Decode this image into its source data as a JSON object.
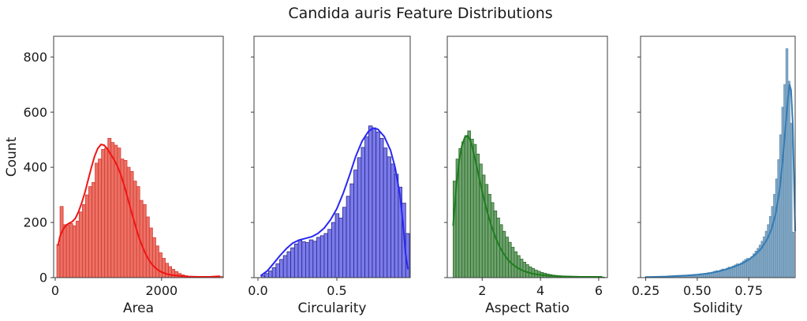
{
  "title": "Candida auris Feature Distributions",
  "ylabel": "Count",
  "y_ticks": {
    "values": [
      0,
      200,
      400,
      600,
      800
    ],
    "labels": [
      "0",
      "200",
      "400",
      "600",
      "800"
    ]
  },
  "chart_data": [
    {
      "id": "area",
      "type": "histogram+kde",
      "xlabel": "Area",
      "colors": {
        "fill": "#ec7165",
        "edge": "#d23b33",
        "line": "#f01515"
      },
      "xlim": [
        -30,
        3160
      ],
      "ylim": [
        0,
        875
      ],
      "x_ticks": {
        "values": [
          0,
          2000
        ],
        "labels": [
          "0",
          "2000"
        ]
      },
      "bins": {
        "start": 30,
        "width": 60
      },
      "counts": [
        120,
        258,
        192,
        190,
        196,
        188,
        205,
        238,
        265,
        300,
        330,
        345,
        415,
        430,
        465,
        470,
        505,
        490,
        480,
        470,
        430,
        425,
        400,
        385,
        350,
        330,
        280,
        265,
        220,
        180,
        145,
        115,
        90,
        70,
        52,
        40,
        30,
        22,
        15,
        10,
        7,
        5,
        4,
        3,
        2,
        2,
        2,
        2,
        2,
        3,
        2,
        4
      ],
      "kde": {
        "x": [
          55,
          90,
          140,
          200,
          260,
          320,
          380,
          440,
          500,
          560,
          620,
          680,
          740,
          800,
          860,
          920,
          980,
          1040,
          1100,
          1160,
          1220,
          1280,
          1340,
          1400,
          1460,
          1520,
          1580,
          1640,
          1700,
          1760,
          1820,
          1880,
          1940,
          2000,
          2100,
          2200,
          2350,
          2500,
          2700,
          2900,
          3090
        ],
        "y": [
          118,
          150,
          172,
          190,
          197,
          203,
          215,
          240,
          272,
          310,
          355,
          400,
          440,
          468,
          483,
          480,
          467,
          448,
          430,
          408,
          380,
          345,
          305,
          262,
          220,
          180,
          143,
          112,
          86,
          65,
          48,
          36,
          27,
          20,
          13,
          9,
          6,
          4,
          3,
          3,
          5
        ]
      }
    },
    {
      "id": "circularity",
      "type": "histogram+kde",
      "xlabel": "Circularity",
      "colors": {
        "fill": "#7c7beb",
        "edge": "#28288c",
        "line": "#2828f5"
      },
      "xlim": [
        -0.025,
        0.965
      ],
      "ylim": [
        0,
        875
      ],
      "x_ticks": {
        "values": [
          0.0,
          0.5
        ],
        "labels": [
          "0.0",
          "0.5"
        ]
      },
      "bins": {
        "start": 0.02,
        "width": 0.0235
      },
      "counts": [
        8,
        15,
        24,
        36,
        50,
        66,
        80,
        94,
        108,
        122,
        135,
        130,
        127,
        137,
        132,
        146,
        152,
        160,
        175,
        200,
        232,
        216,
        255,
        295,
        340,
        390,
        435,
        472,
        510,
        550,
        543,
        528,
        505,
        470,
        438,
        412,
        375,
        328,
        270,
        160
      ],
      "kde": {
        "x": [
          0.02,
          0.06,
          0.1,
          0.14,
          0.18,
          0.22,
          0.26,
          0.3,
          0.34,
          0.38,
          0.42,
          0.46,
          0.5,
          0.54,
          0.58,
          0.62,
          0.66,
          0.7,
          0.73,
          0.76,
          0.8,
          0.84,
          0.87,
          0.9,
          0.92,
          0.935,
          0.95
        ],
        "y": [
          8,
          25,
          52,
          80,
          105,
          125,
          136,
          142,
          148,
          160,
          180,
          210,
          250,
          305,
          370,
          440,
          495,
          530,
          542,
          538,
          512,
          462,
          398,
          300,
          195,
          90,
          32
        ]
      }
    },
    {
      "id": "aspect-ratio",
      "type": "histogram+kde",
      "xlabel": "Aspect Ratio",
      "colors": {
        "fill": "#6ea36e",
        "edge": "#2d692d",
        "line": "#1e7d1e"
      },
      "xlim": [
        0.8,
        6.3
      ],
      "ylim": [
        0,
        875
      ],
      "x_ticks": {
        "values": [
          2,
          4,
          6
        ],
        "labels": [
          "2",
          "4",
          "6"
        ]
      },
      "bins": {
        "start": 1.0,
        "width": 0.1
      },
      "counts": [
        350,
        430,
        468,
        492,
        515,
        532,
        502,
        483,
        448,
        412,
        372,
        338,
        302,
        272,
        242,
        216,
        192,
        168,
        147,
        128,
        110,
        94,
        80,
        67,
        56,
        47,
        39,
        33,
        27,
        23,
        19,
        16,
        13,
        11,
        9,
        8,
        7,
        6,
        5,
        5,
        4,
        4,
        3,
        3,
        3,
        2,
        2,
        2,
        2,
        2,
        2,
        2
      ],
      "kde": {
        "x": [
          1.0,
          1.1,
          1.2,
          1.3,
          1.4,
          1.5,
          1.6,
          1.7,
          1.8,
          1.9,
          2.0,
          2.1,
          2.2,
          2.3,
          2.4,
          2.5,
          2.6,
          2.7,
          2.8,
          2.9,
          3.0,
          3.2,
          3.4,
          3.6,
          3.8,
          4.0,
          4.3,
          4.6,
          5.0,
          5.4,
          5.8,
          6.1
        ],
        "y": [
          190,
          320,
          420,
          478,
          508,
          515,
          495,
          455,
          408,
          360,
          312,
          268,
          228,
          192,
          162,
          135,
          112,
          93,
          77,
          63,
          52,
          36,
          25,
          18,
          13,
          10,
          7,
          5,
          4,
          3,
          3,
          3
        ]
      }
    },
    {
      "id": "solidity",
      "type": "histogram+kde",
      "xlabel": "Solidity",
      "colors": {
        "fill": "#85a9c5",
        "edge": "#6491b4",
        "line": "#347cb4"
      },
      "xlim": [
        0.225,
        0.975
      ],
      "ylim": [
        0,
        875
      ],
      "x_ticks": {
        "values": [
          0.25,
          0.5,
          0.75
        ],
        "labels": [
          "0.25",
          "0.50",
          "0.75"
        ]
      },
      "bins": {
        "start": 0.25,
        "width": 0.01
      },
      "counts": [
        2,
        1,
        2,
        2,
        3,
        2,
        3,
        3,
        4,
        3,
        4,
        5,
        4,
        5,
        5,
        6,
        5,
        7,
        6,
        8,
        7,
        9,
        8,
        10,
        11,
        10,
        12,
        14,
        13,
        16,
        18,
        17,
        20,
        23,
        25,
        24,
        28,
        31,
        30,
        34,
        38,
        36,
        42,
        46,
        50,
        48,
        54,
        60,
        66,
        70,
        68,
        76,
        86,
        96,
        106,
        118,
        132,
        148,
        168,
        192,
        222,
        258,
        302,
        358,
        428,
        518,
        618,
        700,
        830,
        712,
        560,
        165
      ],
      "kde": {
        "x": [
          0.25,
          0.3,
          0.35,
          0.4,
          0.45,
          0.5,
          0.55,
          0.6,
          0.64,
          0.68,
          0.72,
          0.75,
          0.78,
          0.81,
          0.84,
          0.86,
          0.88,
          0.9,
          0.915,
          0.93,
          0.94,
          0.948,
          0.955,
          0.963,
          0.97,
          0.975
        ],
        "y": [
          2,
          3,
          4,
          6,
          8,
          11,
          15,
          22,
          30,
          40,
          52,
          65,
          82,
          105,
          140,
          175,
          230,
          320,
          430,
          560,
          650,
          700,
          680,
          560,
          330,
          170
        ]
      }
    }
  ]
}
